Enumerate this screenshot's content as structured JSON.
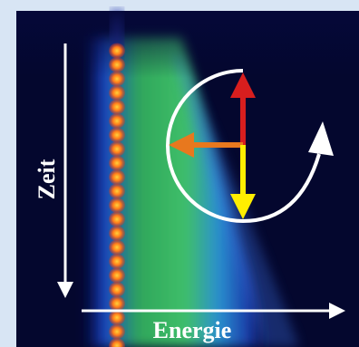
{
  "axis_labels": {
    "vertical": "Zeit",
    "horizontal": "Energie"
  }
}
